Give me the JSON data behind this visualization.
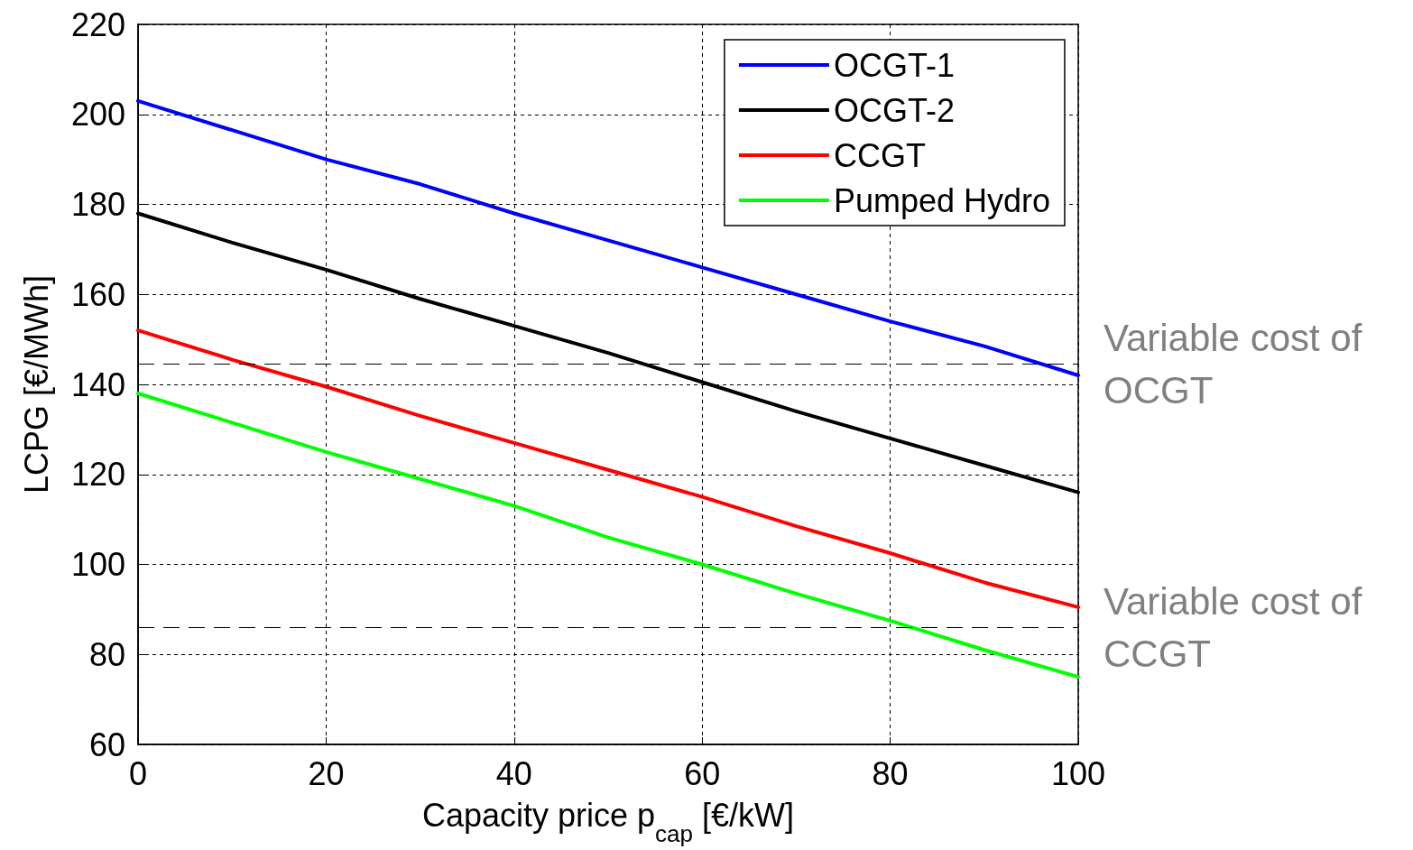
{
  "chart_data": {
    "type": "line",
    "xlabel": "Capacity price p$_{cap}$ [€/kW]",
    "ylabel": "LCPG [€/MWh]",
    "x": [
      0,
      10,
      20,
      30,
      40,
      50,
      60,
      70,
      80,
      90,
      100
    ],
    "series": [
      {
        "name": "OCGT-1",
        "color": "#0000ff",
        "values": [
          203,
          196.5,
          190,
          184.5,
          178,
          172,
          166,
          160,
          154,
          148.5,
          142
        ]
      },
      {
        "name": "OCGT-2",
        "color": "#000000",
        "values": [
          178,
          171.5,
          165.5,
          159,
          153,
          147,
          140.5,
          134,
          128,
          122,
          116
        ]
      },
      {
        "name": "CCGT",
        "color": "#ff0000",
        "values": [
          152,
          145.5,
          139.5,
          133,
          127,
          121,
          115,
          108.5,
          102.5,
          96,
          90.5
        ]
      },
      {
        "name": "Pumped Hydro",
        "color": "#00ff00",
        "values": [
          138,
          131.5,
          125,
          119,
          113,
          106,
          100,
          93.5,
          87.5,
          81,
          75
        ]
      }
    ],
    "ref_lines": [
      {
        "axis": "y",
        "value": 144.5,
        "label": "Variable cost of OCGT",
        "color": "#000000",
        "line_style": "dashed"
      },
      {
        "axis": "y",
        "value": 86,
        "label": "Variable cost of CCGT",
        "color": "#000000",
        "line_style": "dashed"
      }
    ],
    "xlim": [
      0,
      100
    ],
    "xticks": [
      0,
      20,
      40,
      60,
      80,
      100
    ],
    "ylim": [
      60,
      220
    ],
    "yticks": [
      60,
      80,
      100,
      120,
      140,
      160,
      180,
      200,
      220
    ],
    "grid": true,
    "legend": "top right",
    "marker": "none",
    "line_style": "solid"
  }
}
